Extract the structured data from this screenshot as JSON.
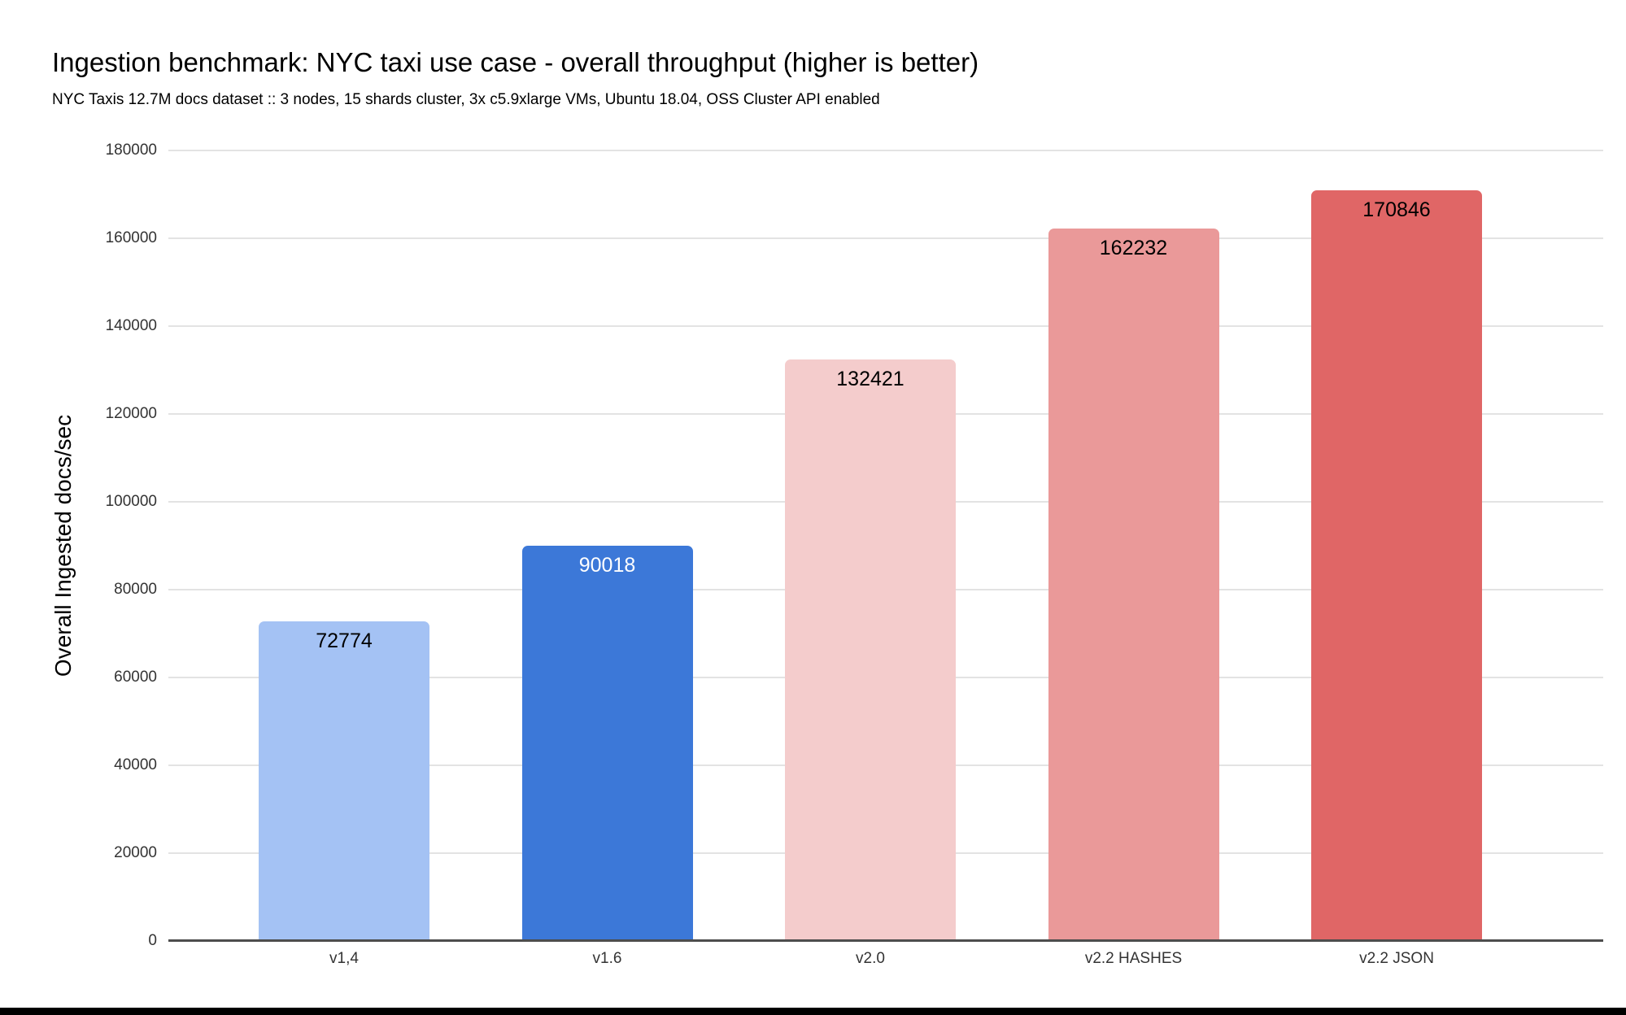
{
  "chart_data": {
    "type": "bar",
    "title": "Ingestion benchmark: NYC taxi use case - overall throughput (higher is better)",
    "subtitle": "NYC Taxis 12.7M docs dataset :: 3 nodes, 15 shards cluster, 3x c5.9xlarge VMs, Ubuntu 18.04, OSS Cluster API enabled",
    "categories": [
      "v1,4",
      "v1.6",
      "v2.0",
      "v2.2 HASHES",
      "v2.2 JSON"
    ],
    "values": [
      72774,
      90018,
      132421,
      162232,
      170846
    ],
    "bar_colors": [
      "#A4C2F4",
      "#3C78D8",
      "#F4CCCC",
      "#EA9999",
      "#E06666"
    ],
    "value_labels_shown": true,
    "xlabel": "",
    "ylabel": "Overall Ingested docs/sec",
    "ylim": [
      0,
      180000
    ],
    "ytick_step": 20000,
    "ytick_labels": [
      "0",
      "20000",
      "40000",
      "60000",
      "80000",
      "100000",
      "120000",
      "140000",
      "160000",
      "180000"
    ],
    "grid": "horizontal",
    "legend": "none",
    "colors": {
      "gridline": "#e3e3e3",
      "axis_line": "#4d4d4d",
      "text": "#000000",
      "tick_text": "#333333",
      "background": "#ffffff"
    }
  }
}
